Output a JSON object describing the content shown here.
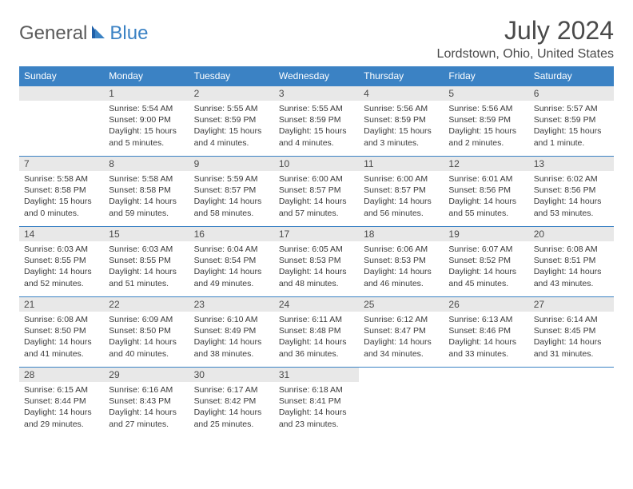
{
  "brand": {
    "word1": "General",
    "word2": "Blue",
    "accent": "#3b82c4"
  },
  "title": "July 2024",
  "location": "Lordstown, Ohio, United States",
  "colors": {
    "header_bg": "#3b82c4",
    "header_fg": "#ffffff",
    "daynum_bg": "#e8e8e8",
    "text": "#3a3a3a",
    "rule": "#3b82c4"
  },
  "weekdays": [
    "Sunday",
    "Monday",
    "Tuesday",
    "Wednesday",
    "Thursday",
    "Friday",
    "Saturday"
  ],
  "weeks": [
    [
      null,
      {
        "n": "1",
        "sr": "Sunrise: 5:54 AM",
        "ss": "Sunset: 9:00 PM",
        "d1": "Daylight: 15 hours",
        "d2": "and 5 minutes."
      },
      {
        "n": "2",
        "sr": "Sunrise: 5:55 AM",
        "ss": "Sunset: 8:59 PM",
        "d1": "Daylight: 15 hours",
        "d2": "and 4 minutes."
      },
      {
        "n": "3",
        "sr": "Sunrise: 5:55 AM",
        "ss": "Sunset: 8:59 PM",
        "d1": "Daylight: 15 hours",
        "d2": "and 4 minutes."
      },
      {
        "n": "4",
        "sr": "Sunrise: 5:56 AM",
        "ss": "Sunset: 8:59 PM",
        "d1": "Daylight: 15 hours",
        "d2": "and 3 minutes."
      },
      {
        "n": "5",
        "sr": "Sunrise: 5:56 AM",
        "ss": "Sunset: 8:59 PM",
        "d1": "Daylight: 15 hours",
        "d2": "and 2 minutes."
      },
      {
        "n": "6",
        "sr": "Sunrise: 5:57 AM",
        "ss": "Sunset: 8:59 PM",
        "d1": "Daylight: 15 hours",
        "d2": "and 1 minute."
      }
    ],
    [
      {
        "n": "7",
        "sr": "Sunrise: 5:58 AM",
        "ss": "Sunset: 8:58 PM",
        "d1": "Daylight: 15 hours",
        "d2": "and 0 minutes."
      },
      {
        "n": "8",
        "sr": "Sunrise: 5:58 AM",
        "ss": "Sunset: 8:58 PM",
        "d1": "Daylight: 14 hours",
        "d2": "and 59 minutes."
      },
      {
        "n": "9",
        "sr": "Sunrise: 5:59 AM",
        "ss": "Sunset: 8:57 PM",
        "d1": "Daylight: 14 hours",
        "d2": "and 58 minutes."
      },
      {
        "n": "10",
        "sr": "Sunrise: 6:00 AM",
        "ss": "Sunset: 8:57 PM",
        "d1": "Daylight: 14 hours",
        "d2": "and 57 minutes."
      },
      {
        "n": "11",
        "sr": "Sunrise: 6:00 AM",
        "ss": "Sunset: 8:57 PM",
        "d1": "Daylight: 14 hours",
        "d2": "and 56 minutes."
      },
      {
        "n": "12",
        "sr": "Sunrise: 6:01 AM",
        "ss": "Sunset: 8:56 PM",
        "d1": "Daylight: 14 hours",
        "d2": "and 55 minutes."
      },
      {
        "n": "13",
        "sr": "Sunrise: 6:02 AM",
        "ss": "Sunset: 8:56 PM",
        "d1": "Daylight: 14 hours",
        "d2": "and 53 minutes."
      }
    ],
    [
      {
        "n": "14",
        "sr": "Sunrise: 6:03 AM",
        "ss": "Sunset: 8:55 PM",
        "d1": "Daylight: 14 hours",
        "d2": "and 52 minutes."
      },
      {
        "n": "15",
        "sr": "Sunrise: 6:03 AM",
        "ss": "Sunset: 8:55 PM",
        "d1": "Daylight: 14 hours",
        "d2": "and 51 minutes."
      },
      {
        "n": "16",
        "sr": "Sunrise: 6:04 AM",
        "ss": "Sunset: 8:54 PM",
        "d1": "Daylight: 14 hours",
        "d2": "and 49 minutes."
      },
      {
        "n": "17",
        "sr": "Sunrise: 6:05 AM",
        "ss": "Sunset: 8:53 PM",
        "d1": "Daylight: 14 hours",
        "d2": "and 48 minutes."
      },
      {
        "n": "18",
        "sr": "Sunrise: 6:06 AM",
        "ss": "Sunset: 8:53 PM",
        "d1": "Daylight: 14 hours",
        "d2": "and 46 minutes."
      },
      {
        "n": "19",
        "sr": "Sunrise: 6:07 AM",
        "ss": "Sunset: 8:52 PM",
        "d1": "Daylight: 14 hours",
        "d2": "and 45 minutes."
      },
      {
        "n": "20",
        "sr": "Sunrise: 6:08 AM",
        "ss": "Sunset: 8:51 PM",
        "d1": "Daylight: 14 hours",
        "d2": "and 43 minutes."
      }
    ],
    [
      {
        "n": "21",
        "sr": "Sunrise: 6:08 AM",
        "ss": "Sunset: 8:50 PM",
        "d1": "Daylight: 14 hours",
        "d2": "and 41 minutes."
      },
      {
        "n": "22",
        "sr": "Sunrise: 6:09 AM",
        "ss": "Sunset: 8:50 PM",
        "d1": "Daylight: 14 hours",
        "d2": "and 40 minutes."
      },
      {
        "n": "23",
        "sr": "Sunrise: 6:10 AM",
        "ss": "Sunset: 8:49 PM",
        "d1": "Daylight: 14 hours",
        "d2": "and 38 minutes."
      },
      {
        "n": "24",
        "sr": "Sunrise: 6:11 AM",
        "ss": "Sunset: 8:48 PM",
        "d1": "Daylight: 14 hours",
        "d2": "and 36 minutes."
      },
      {
        "n": "25",
        "sr": "Sunrise: 6:12 AM",
        "ss": "Sunset: 8:47 PM",
        "d1": "Daylight: 14 hours",
        "d2": "and 34 minutes."
      },
      {
        "n": "26",
        "sr": "Sunrise: 6:13 AM",
        "ss": "Sunset: 8:46 PM",
        "d1": "Daylight: 14 hours",
        "d2": "and 33 minutes."
      },
      {
        "n": "27",
        "sr": "Sunrise: 6:14 AM",
        "ss": "Sunset: 8:45 PM",
        "d1": "Daylight: 14 hours",
        "d2": "and 31 minutes."
      }
    ],
    [
      {
        "n": "28",
        "sr": "Sunrise: 6:15 AM",
        "ss": "Sunset: 8:44 PM",
        "d1": "Daylight: 14 hours",
        "d2": "and 29 minutes."
      },
      {
        "n": "29",
        "sr": "Sunrise: 6:16 AM",
        "ss": "Sunset: 8:43 PM",
        "d1": "Daylight: 14 hours",
        "d2": "and 27 minutes."
      },
      {
        "n": "30",
        "sr": "Sunrise: 6:17 AM",
        "ss": "Sunset: 8:42 PM",
        "d1": "Daylight: 14 hours",
        "d2": "and 25 minutes."
      },
      {
        "n": "31",
        "sr": "Sunrise: 6:18 AM",
        "ss": "Sunset: 8:41 PM",
        "d1": "Daylight: 14 hours",
        "d2": "and 23 minutes."
      },
      null,
      null,
      null
    ]
  ]
}
